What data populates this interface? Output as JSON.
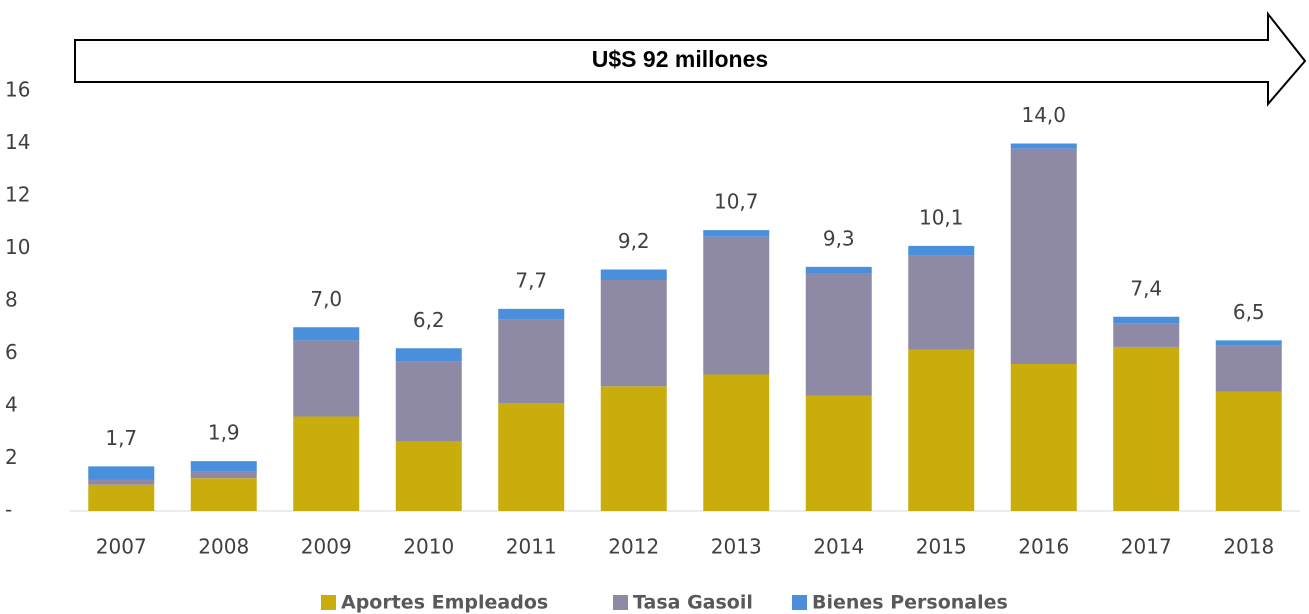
{
  "chart_data": {
    "type": "stacked_bar",
    "annotation": "U$S 92 millones",
    "categories": [
      "2007",
      "2008",
      "2009",
      "2010",
      "2011",
      "2012",
      "2013",
      "2014",
      "2015",
      "2016",
      "2017",
      "2018"
    ],
    "series": [
      {
        "name": "Aportes Empleados",
        "color": "#c9ad0c",
        "values": [
          1.0,
          1.25,
          3.6,
          2.65,
          4.1,
          4.75,
          5.2,
          4.4,
          6.15,
          5.6,
          6.25,
          4.55
        ]
      },
      {
        "name": "Tasa Gasoil",
        "color": "#8e8aa6",
        "values": [
          0.2,
          0.25,
          2.9,
          3.05,
          3.2,
          4.05,
          5.25,
          4.65,
          3.6,
          8.2,
          0.9,
          1.75
        ]
      },
      {
        "name": "Bienes Personales",
        "color": "#4a8fdc",
        "values": [
          0.5,
          0.4,
          0.5,
          0.5,
          0.4,
          0.4,
          0.25,
          0.25,
          0.35,
          0.2,
          0.25,
          0.2
        ]
      }
    ],
    "totals": [
      1.7,
      1.9,
      7.0,
      6.2,
      7.7,
      9.2,
      10.7,
      9.3,
      10.1,
      14.0,
      7.4,
      6.5
    ],
    "total_labels": [
      "1,7",
      "1,9",
      "7,0",
      "6,2",
      "7,7",
      "9,2",
      "10,7",
      "9,3",
      "10,1",
      "14,0",
      "7,4",
      "6,5"
    ],
    "ylim": [
      0,
      16
    ],
    "yticks": [
      {
        "value": 0,
        "label": "-"
      },
      2,
      4,
      6,
      8,
      10,
      12,
      14,
      16
    ],
    "legend": "bottom"
  }
}
